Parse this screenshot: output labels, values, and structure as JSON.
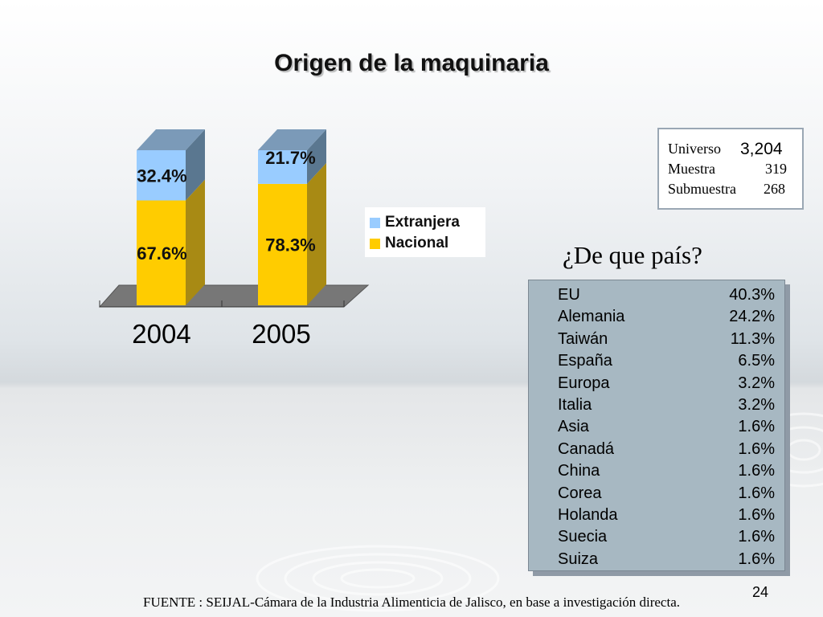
{
  "slide": {
    "title": "Origen de la maquinaria",
    "question": "¿De que país?",
    "source": "FUENTE : SEIJAL-Cámara de la Industria Alimenticia de Jalisco,  en base a investigación directa.",
    "page_number": "24"
  },
  "stats": [
    {
      "label": "Universo",
      "value": "3,204"
    },
    {
      "label": "Muestra",
      "value": "319"
    },
    {
      "label": "Submuestra",
      "value": "268"
    }
  ],
  "countries": [
    {
      "name": "EU",
      "pct": "40.3%"
    },
    {
      "name": "Alemania",
      "pct": "24.2%"
    },
    {
      "name": "Taiwán",
      "pct": "11.3%"
    },
    {
      "name": "España",
      "pct": "6.5%"
    },
    {
      "name": "Europa",
      "pct": "3.2%"
    },
    {
      "name": "Italia",
      "pct": "3.2%"
    },
    {
      "name": "Asia",
      "pct": "1.6%"
    },
    {
      "name": "Canadá",
      "pct": "1.6%"
    },
    {
      "name": "China",
      "pct": "1.6%"
    },
    {
      "name": "Corea",
      "pct": "1.6%"
    },
    {
      "name": "Holanda",
      "pct": "1.6%"
    },
    {
      "name": "Suecia",
      "pct": "1.6%"
    },
    {
      "name": "Suiza",
      "pct": "1.6%"
    }
  ],
  "chart_data": {
    "type": "bar",
    "stacked": true,
    "three_d": true,
    "categories": [
      "2004",
      "2005"
    ],
    "series": [
      {
        "name": "Nacional",
        "values": [
          67.6,
          78.3
        ],
        "labels": [
          "67.6%",
          "78.3%"
        ],
        "color": "#ffcc00",
        "side_color": "#a88a14",
        "top_color": "#e0b400"
      },
      {
        "name": "Extranjera",
        "values": [
          32.4,
          21.7
        ],
        "labels": [
          "32.4%",
          "21.7%"
        ],
        "color": "#99ccff",
        "side_color": "#5a7790",
        "top_color": "#7b9ab8"
      }
    ],
    "ylim": [
      0,
      100
    ],
    "legend_position": "right",
    "grid": false,
    "floor_color": "#777777"
  }
}
